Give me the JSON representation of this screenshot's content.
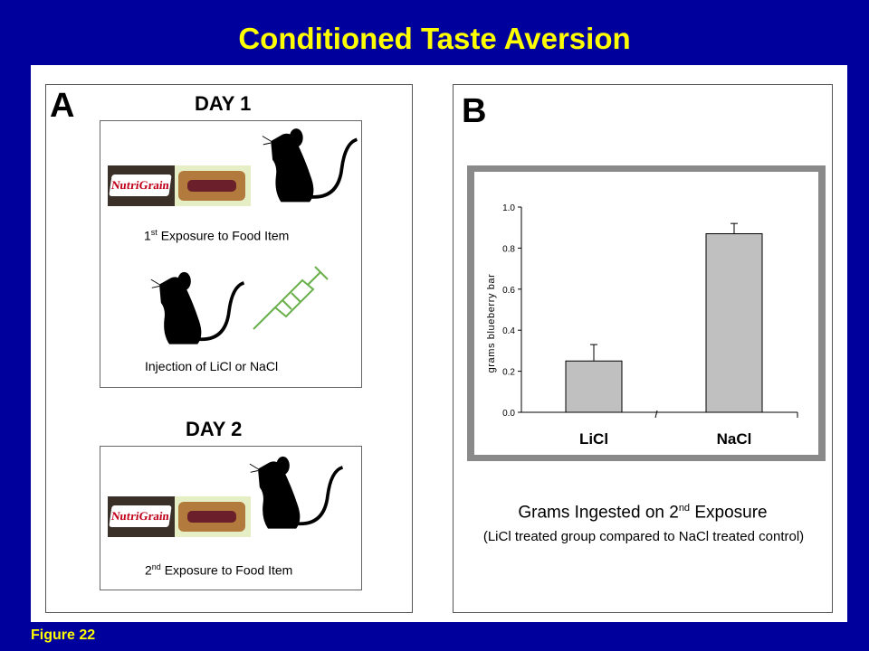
{
  "title": "Conditioned Taste Aversion",
  "footer": "Figure 22",
  "panel_a": {
    "letter": "A",
    "day1": "DAY 1",
    "day2": "DAY 2",
    "brand": "NutriGrain",
    "exposure1": {
      "ordinal": "1",
      "sup": "st",
      "text": " Exposure to Food Item"
    },
    "injection": "Injection of LiCl or NaCl",
    "exposure2": {
      "ordinal": "2",
      "sup": "nd",
      "text": " Exposure to Food Item"
    }
  },
  "panel_b": {
    "letter": "B",
    "caption_main": {
      "before": "Grams Ingested on 2",
      "sup": "nd",
      "after": " Exposure"
    },
    "caption_sub": "(LiCl treated group compared to NaCl treated control)"
  },
  "colors": {
    "background": "#00009c",
    "title": "#ffff00",
    "bar_fill": "#c0c0c0",
    "syringe": "#6ab04c"
  },
  "chart_data": {
    "type": "bar",
    "categories": [
      "LiCl",
      "NaCl"
    ],
    "values": [
      0.25,
      0.87
    ],
    "error": [
      0.08,
      0.05
    ],
    "ylabel": "grams blueberry bar",
    "xlabel": "",
    "ylim": [
      0,
      1.0
    ],
    "yticks": [
      "0.0",
      "0.2",
      "0.4",
      "0.6",
      "0.8",
      "1.0"
    ],
    "grid": false
  }
}
